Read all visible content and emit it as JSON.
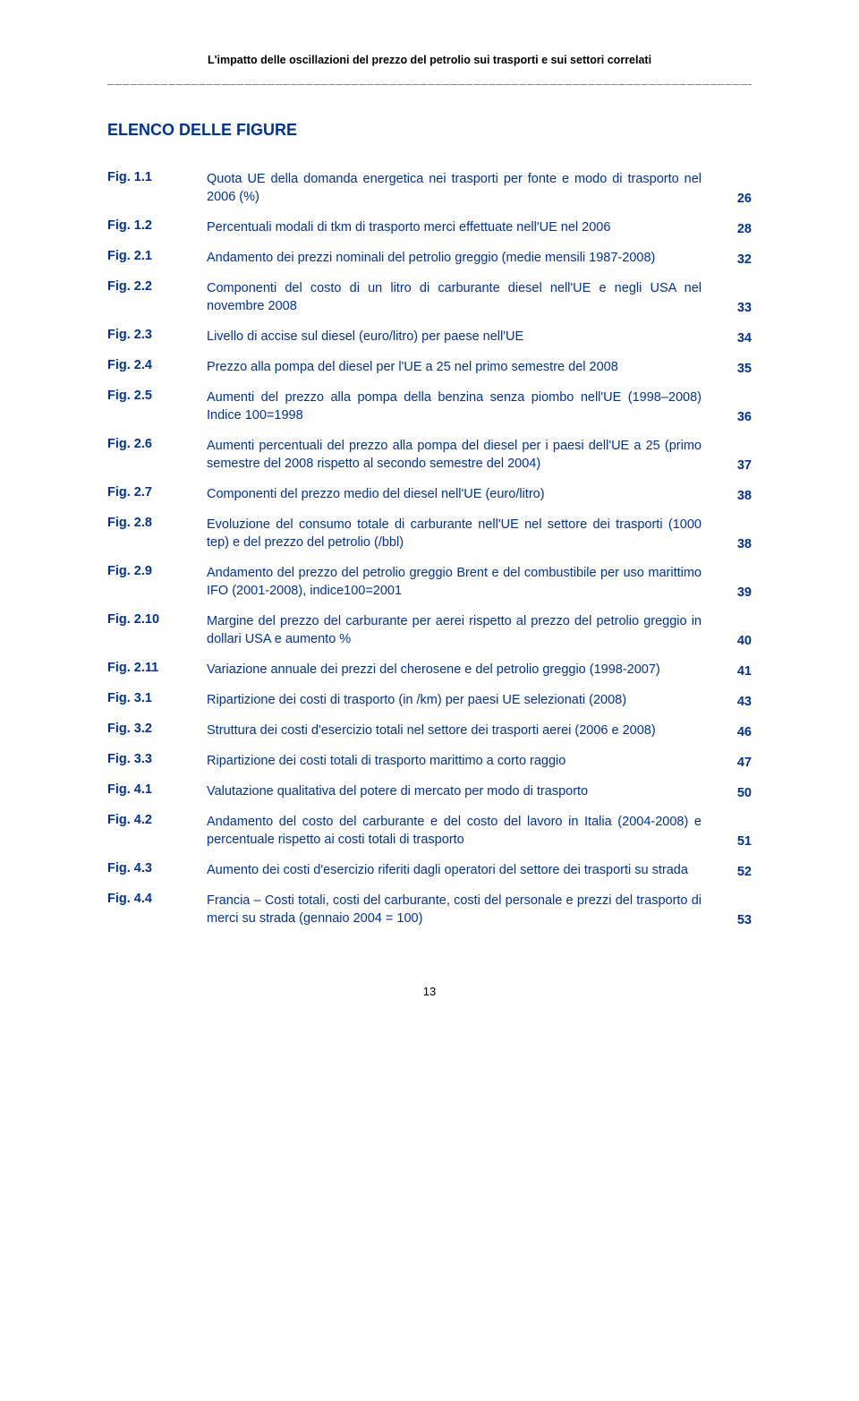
{
  "colors": {
    "heading_blue": "#003399",
    "body_black": "#000000",
    "background": "#ffffff"
  },
  "typography": {
    "body_font": "Verdana, Arial, sans-serif",
    "body_size_pt": 11,
    "section_title_size_pt": 14,
    "header_title_size_pt": 9.5
  },
  "header": {
    "running_title": "L'impatto delle oscillazioni del prezzo del petrolio sui trasporti e sui settori correlati",
    "rule": "_____________________________________________________________________________________________"
  },
  "section_title": "ELENCO DELLE FIGURE",
  "entries": [
    {
      "label": "Fig. 1.1",
      "text": "Quota UE della domanda energetica nei trasporti per fonte e modo di trasporto nel 2006 (%)",
      "page": "26"
    },
    {
      "label": "Fig. 1.2",
      "text": "Percentuali modali di tkm di trasporto merci effettuate nell'UE nel 2006",
      "page": "28"
    },
    {
      "label": "Fig. 2.1",
      "text": "Andamento dei prezzi nominali del petrolio greggio (medie mensili 1987-2008)",
      "page": "32"
    },
    {
      "label": "Fig. 2.2",
      "text": "Componenti del costo di un litro di carburante diesel nell'UE e negli USA nel novembre 2008",
      "page": "33"
    },
    {
      "label": "Fig. 2.3",
      "text": "Livello di accise sul diesel (euro/litro) per paese nell'UE",
      "page": "34"
    },
    {
      "label": "Fig. 2.4",
      "text": "Prezzo alla pompa del diesel per l'UE a 25 nel primo semestre del 2008",
      "page": "35"
    },
    {
      "label": "Fig. 2.5",
      "text": "Aumenti del prezzo alla pompa della benzina senza piombo nell'UE (1998–2008) Indice 100=1998",
      "page": "36"
    },
    {
      "label": "Fig. 2.6",
      "text": "Aumenti percentuali del prezzo alla pompa del diesel per i paesi dell'UE a 25 (primo semestre del 2008 rispetto al secondo semestre del 2004)",
      "page": "37"
    },
    {
      "label": "Fig. 2.7",
      "text": "Componenti del prezzo medio del diesel nell'UE (euro/litro)",
      "page": "38"
    },
    {
      "label": "Fig. 2.8",
      "text": "Evoluzione del consumo totale di carburante nell'UE nel settore dei trasporti (1000 tep) e del prezzo del petrolio (/bbl)",
      "page": "38"
    },
    {
      "label": "Fig. 2.9",
      "text": "Andamento del prezzo del petrolio greggio Brent e del combustibile per uso marittimo IFO (2001-2008), indice100=2001",
      "page": "39"
    },
    {
      "label": "Fig. 2.10",
      "text": "Margine del prezzo del carburante per aerei rispetto al prezzo del petrolio greggio in dollari USA e aumento %",
      "page": "40"
    },
    {
      "label": "Fig. 2.11",
      "text": "Variazione annuale dei prezzi del cherosene e del petrolio greggio (1998-2007)",
      "page": "41"
    },
    {
      "label": "Fig. 3.1",
      "text": "Ripartizione dei costi di trasporto (in /km) per paesi UE selezionati (2008)",
      "page": "43"
    },
    {
      "label": "Fig. 3.2",
      "text": "Struttura dei costi d'esercizio totali nel settore dei trasporti aerei (2006 e 2008)",
      "page": "46"
    },
    {
      "label": "Fig. 3.3",
      "text": "Ripartizione dei costi totali di trasporto marittimo a corto raggio",
      "page": "47"
    },
    {
      "label": "Fig. 4.1",
      "text": "Valutazione qualitativa del potere di mercato per modo di trasporto",
      "page": "50"
    },
    {
      "label": "Fig. 4.2",
      "text": "Andamento del costo del carburante e del costo del lavoro in Italia (2004-2008) e percentuale rispetto ai costi totali di trasporto",
      "page": "51"
    },
    {
      "label": "Fig. 4.3",
      "text": "Aumento dei costi d'esercizio riferiti dagli operatori del settore dei trasporti su strada",
      "page": "52"
    },
    {
      "label": "Fig. 4.4",
      "text": "Francia – Costi totali, costi del carburante, costi del personale e prezzi del trasporto di merci su strada (gennaio 2004 = 100)",
      "page": "53"
    }
  ],
  "page_number": "13"
}
